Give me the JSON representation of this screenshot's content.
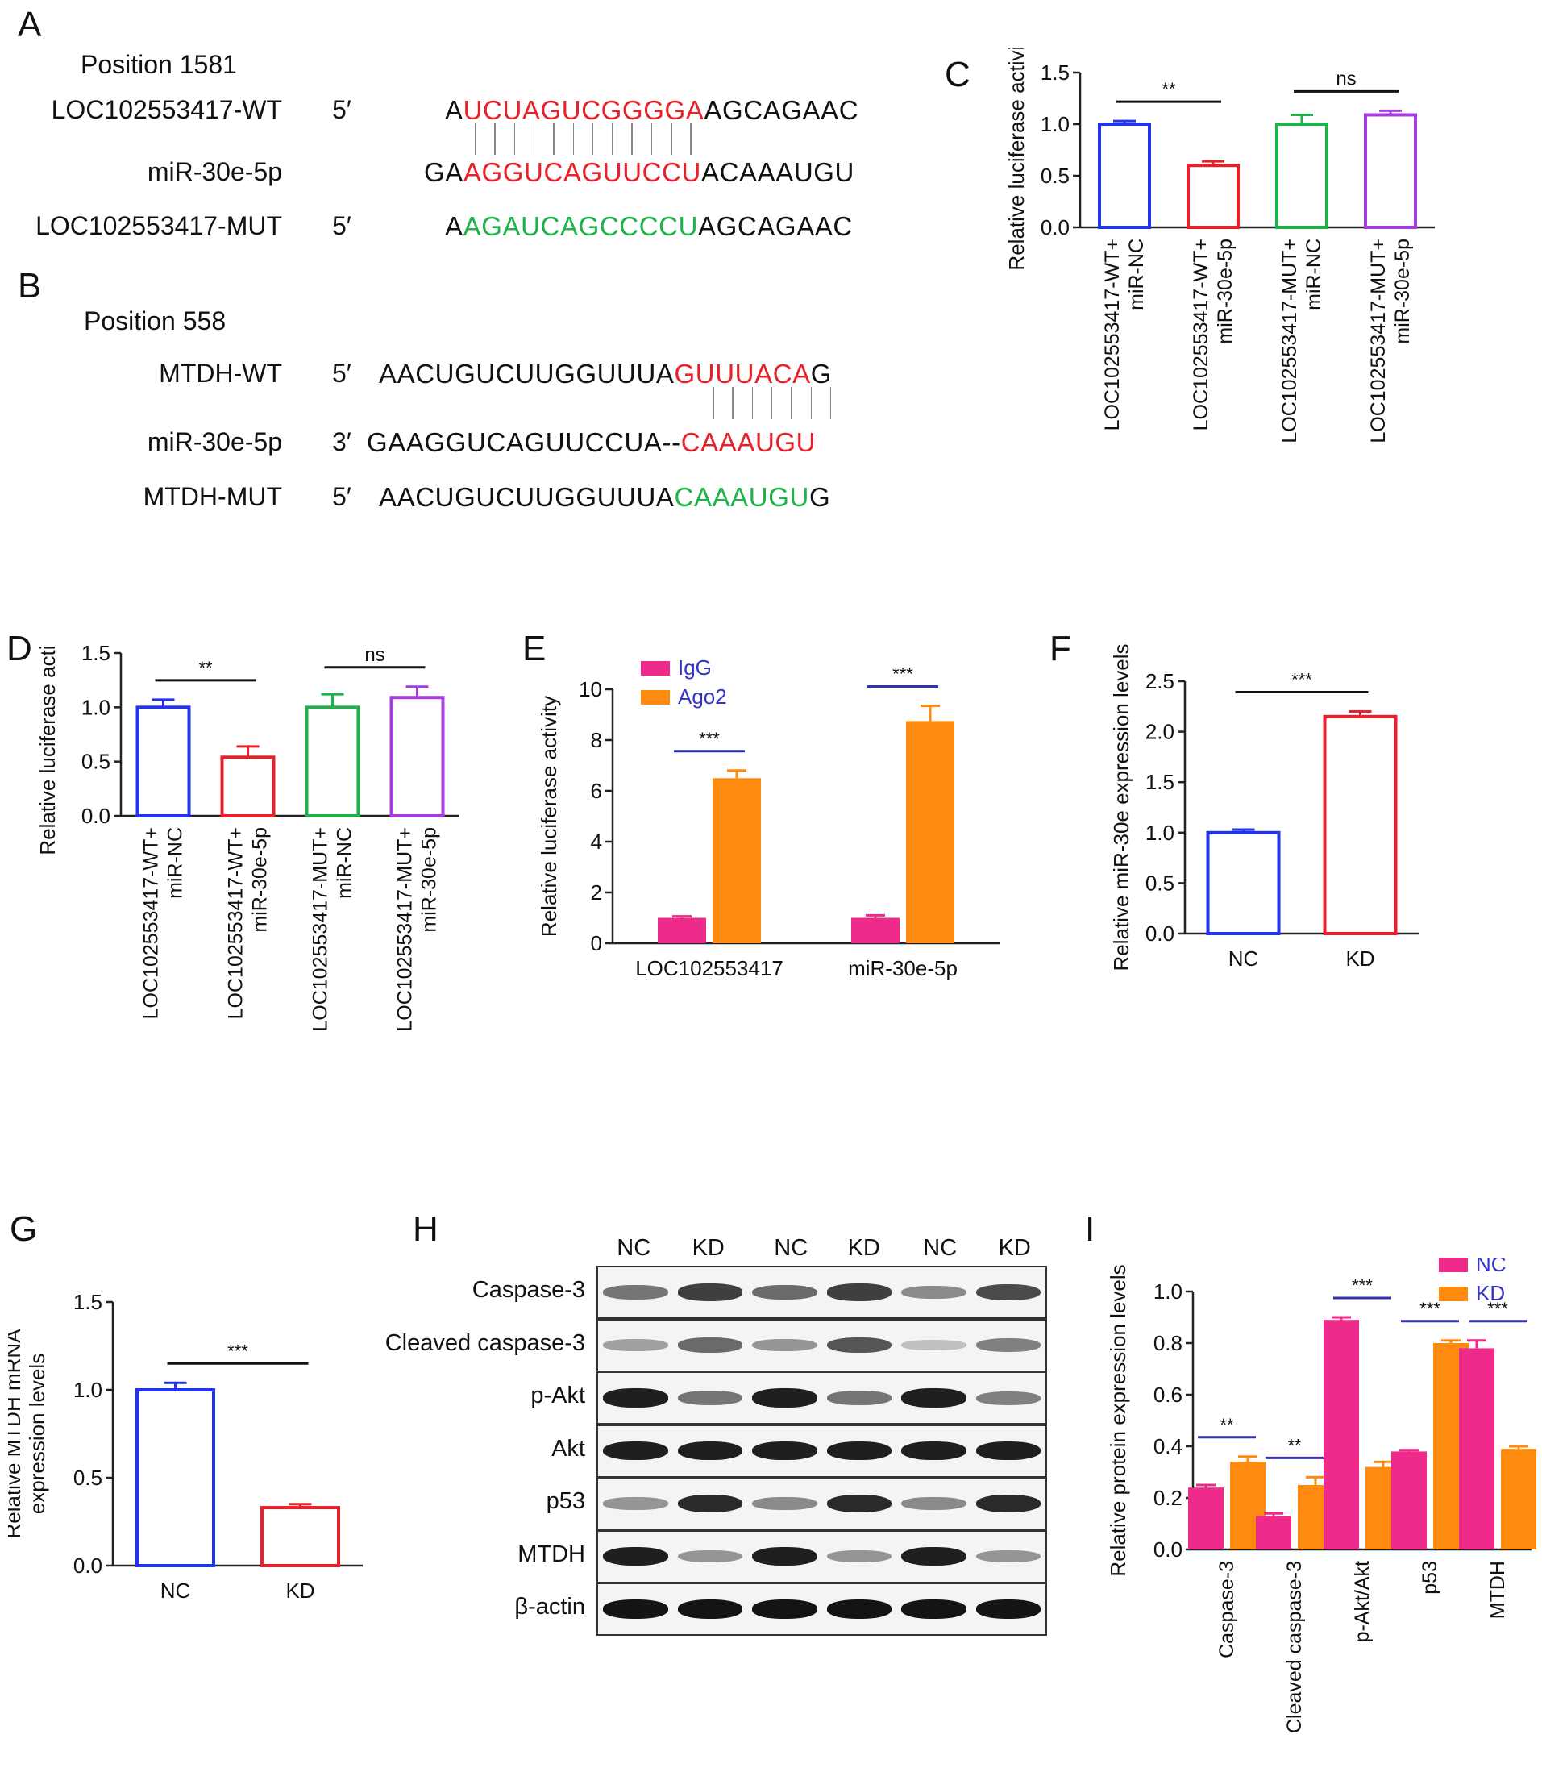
{
  "panels": {
    "A": "A",
    "B": "B",
    "C": "C",
    "D": "D",
    "E": "E",
    "F": "F",
    "G": "G",
    "H": "H",
    "I": "I"
  },
  "panel_a": {
    "position": "Position 1581",
    "rows": [
      {
        "name": "LOC102553417-WT",
        "prime": "5′",
        "seq": [
          [
            "A",
            "k"
          ],
          [
            "UCUAGUCGGGGA",
            "r"
          ],
          [
            "AGCAGAAC",
            "k"
          ]
        ]
      },
      {
        "name": "miR-30e-5p",
        "prime": "",
        "seq": [
          [
            "GA",
            "k"
          ],
          [
            "AGGUCAGUUCCU",
            "r"
          ],
          [
            "ACAAAUGU",
            "k"
          ]
        ]
      },
      {
        "name": "LOC102553417-MUT",
        "prime": "5′",
        "seq": [
          [
            "A",
            "k"
          ],
          [
            "AGAUCAGCCCCU",
            "g"
          ],
          [
            "AGCAGAAC",
            "k"
          ]
        ]
      }
    ],
    "pair_count": 12
  },
  "panel_b": {
    "position": "Position 558",
    "rows": [
      {
        "name": "MTDH-WT",
        "prime": "5′",
        "seq": [
          [
            "AACUGUCUUGGUUUA",
            "k"
          ],
          [
            "GUUUACA",
            "r"
          ],
          [
            "G",
            "k"
          ]
        ]
      },
      {
        "name": "miR-30e-5p",
        "prime": "3′",
        "seq": [
          [
            "GAAGGUCAGUUCCUA--",
            "k"
          ],
          [
            "CAAAUGU",
            "r"
          ]
        ]
      },
      {
        "name": "MTDH-MUT",
        "prime": "5′",
        "seq": [
          [
            "AACUGUCUUGGUUUA",
            "k"
          ],
          [
            "CAAAUGU",
            "g"
          ],
          [
            "G",
            "k"
          ]
        ]
      }
    ],
    "pair_count": 7
  },
  "chart_data": [
    {
      "id": "C",
      "type": "bar",
      "style": "outline",
      "ylabel": "Relative luciferase activity",
      "ylim": [
        0,
        1.5
      ],
      "yticks": [
        "0.0",
        "0.5",
        "1.0",
        "1.5"
      ],
      "categories": [
        "LOC102553417-WT+\nmiR-NC",
        "LOC102553417-WT+\nmiR-30e-5p",
        "LOC102553417-MUT+\nmiR-NC",
        "LOC102553417-MUT+\nmiR-30e-5p"
      ],
      "values": [
        1.0,
        0.6,
        1.0,
        1.09
      ],
      "errors": [
        0.03,
        0.04,
        0.09,
        0.04
      ],
      "colors": [
        "#2233ee",
        "#e8202a",
        "#1fb24a",
        "#a43ce0"
      ],
      "significance": [
        {
          "from": 0,
          "to": 1,
          "label": "**"
        },
        {
          "from": 2,
          "to": 3,
          "label": "ns"
        }
      ]
    },
    {
      "id": "D",
      "type": "bar",
      "style": "outline",
      "ylabel": "Relative luciferase activity",
      "ylim": [
        0,
        1.5
      ],
      "yticks": [
        "0.0",
        "0.5",
        "1.0",
        "1.5"
      ],
      "categories": [
        "LOC102553417-WT+\nmiR-NC",
        "LOC102553417-WT+\nmiR-30e-5p",
        "LOC102553417-MUT+\nmiR-NC",
        "LOC102553417-MUT+\nmiR-30e-5p"
      ],
      "values": [
        1.0,
        0.54,
        1.0,
        1.09
      ],
      "errors": [
        0.07,
        0.1,
        0.12,
        0.1
      ],
      "colors": [
        "#2233ee",
        "#e8202a",
        "#1fb24a",
        "#a43ce0"
      ],
      "significance": [
        {
          "from": 0,
          "to": 1,
          "label": "**"
        },
        {
          "from": 2,
          "to": 3,
          "label": "ns"
        }
      ]
    },
    {
      "id": "E",
      "type": "bar",
      "style": "filled",
      "ylabel": "Relative luciferase activity",
      "ylim": [
        0,
        10
      ],
      "yticks": [
        "0",
        "2",
        "4",
        "6",
        "8",
        "10"
      ],
      "categories": [
        "LOC102553417",
        "miR-30e-5p"
      ],
      "series": [
        {
          "name": "IgG",
          "values": [
            1.0,
            1.0
          ],
          "errors": [
            0.06,
            0.1
          ],
          "color": "#ee2a8a"
        },
        {
          "name": "Ago2",
          "values": [
            6.5,
            8.75
          ],
          "errors": [
            0.3,
            0.6
          ],
          "color": "#ff8a10"
        }
      ],
      "legend": "top-left",
      "significance": [
        {
          "group": 0,
          "label": "***"
        },
        {
          "group": 1,
          "label": "***"
        }
      ]
    },
    {
      "id": "F",
      "type": "bar",
      "style": "outline",
      "ylabel": "Relative miR-30e expression levels",
      "ylim": [
        0,
        2.5
      ],
      "yticks": [
        "0.0",
        "0.5",
        "1.0",
        "1.5",
        "2.0",
        "2.5"
      ],
      "categories": [
        "NC",
        "KD"
      ],
      "values": [
        1.0,
        2.15
      ],
      "errors": [
        0.03,
        0.05
      ],
      "colors": [
        "#2233ee",
        "#e8202a"
      ],
      "significance": [
        {
          "from": 0,
          "to": 1,
          "label": "***"
        }
      ]
    },
    {
      "id": "G",
      "type": "bar",
      "style": "outline",
      "ylabel": "Relative MTDH mRNA\nexpression levels",
      "ylim": [
        0,
        1.5
      ],
      "yticks": [
        "0.0",
        "0.5",
        "1.0",
        "1.5"
      ],
      "categories": [
        "NC",
        "KD"
      ],
      "values": [
        1.0,
        0.33
      ],
      "errors": [
        0.04,
        0.02
      ],
      "colors": [
        "#2233ee",
        "#e8202a"
      ],
      "significance": [
        {
          "from": 0,
          "to": 1,
          "label": "***"
        }
      ]
    },
    {
      "id": "I",
      "type": "bar",
      "style": "filled",
      "ylabel": "Relative protein expression levels",
      "ylim": [
        0,
        1.0
      ],
      "yticks": [
        "0.0",
        "0.2",
        "0.4",
        "0.6",
        "0.8",
        "1.0"
      ],
      "categories": [
        "Caspase-3",
        "Cleaved caspase-3",
        "p-Akt/Akt",
        "p53",
        "MTDH"
      ],
      "series": [
        {
          "name": "NC",
          "values": [
            0.24,
            0.13,
            0.89,
            0.38,
            0.78
          ],
          "errors": [
            0.01,
            0.01,
            0.01,
            0.005,
            0.03
          ],
          "color": "#ee2a8a"
        },
        {
          "name": "KD",
          "values": [
            0.34,
            0.25,
            0.32,
            0.8,
            0.39
          ],
          "errors": [
            0.02,
            0.03,
            0.02,
            0.01,
            0.01
          ],
          "color": "#ff8a10"
        }
      ],
      "legend": "top-right",
      "significance": [
        {
          "group": 0,
          "label": "**"
        },
        {
          "group": 1,
          "label": "**"
        },
        {
          "group": 2,
          "label": "***"
        },
        {
          "group": 3,
          "label": "***"
        },
        {
          "group": 4,
          "label": "***"
        }
      ]
    }
  ],
  "panel_h": {
    "lanes": [
      "NC",
      "KD",
      "NC",
      "KD",
      "NC",
      "KD"
    ],
    "blots": [
      {
        "label": "Caspase-3",
        "intensities": [
          0.55,
          0.8,
          0.6,
          0.8,
          0.45,
          0.75
        ]
      },
      {
        "label": "Cleaved caspase-3",
        "intensities": [
          0.35,
          0.6,
          0.4,
          0.7,
          0.2,
          0.5
        ]
      },
      {
        "label": "p-Akt",
        "intensities": [
          0.95,
          0.55,
          0.95,
          0.55,
          0.95,
          0.5
        ]
      },
      {
        "label": "Akt",
        "intensities": [
          0.95,
          0.95,
          0.95,
          0.95,
          0.95,
          0.95
        ]
      },
      {
        "label": "p53",
        "intensities": [
          0.4,
          0.9,
          0.45,
          0.9,
          0.45,
          0.9
        ]
      },
      {
        "label": "MTDH",
        "intensities": [
          0.95,
          0.4,
          0.95,
          0.4,
          0.95,
          0.4
        ]
      },
      {
        "label": "β-actin",
        "intensities": [
          1.0,
          1.0,
          1.0,
          1.0,
          1.0,
          1.0
        ]
      }
    ]
  }
}
